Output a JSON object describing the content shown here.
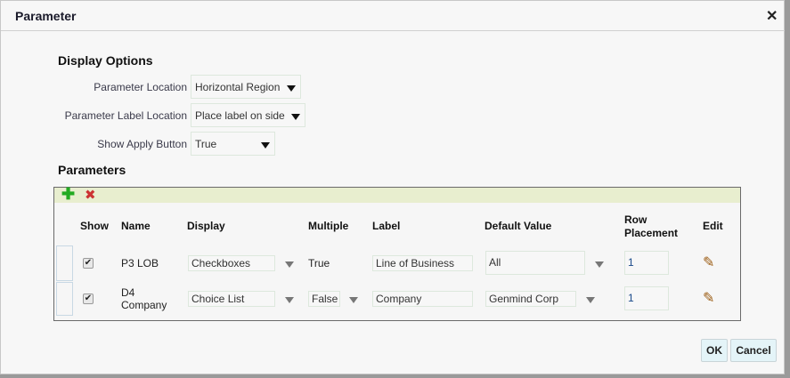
{
  "dialog": {
    "title": "Parameter",
    "close_icon": "close-icon"
  },
  "display_options": {
    "heading": "Display Options",
    "parameter_location": {
      "label": "Parameter Location",
      "value": "Horizontal Region"
    },
    "parameter_label_location": {
      "label": "Parameter Label Location",
      "value": "Place label on side"
    },
    "show_apply_button": {
      "label": "Show Apply Button",
      "value": "True"
    }
  },
  "parameters": {
    "heading": "Parameters",
    "toolbar": {
      "add_icon": "plus-icon",
      "delete_icon": "x-icon",
      "add_color": "#22aa22",
      "delete_color": "#cc3333"
    },
    "columns": {
      "show": "Show",
      "name": "Name",
      "display": "Display",
      "multiple": "Multiple",
      "label": "Label",
      "default_value": "Default Value",
      "row_placement_1": "Row",
      "row_placement_2": "Placement",
      "edit": "Edit"
    },
    "rows": [
      {
        "show": true,
        "name_1": "P3 LOB",
        "name_2": "",
        "display": "Checkboxes",
        "multiple": "True",
        "label": "Line of Business",
        "default_value": "All",
        "row_placement": "1"
      },
      {
        "show": true,
        "name_1": "D4",
        "name_2": "Company",
        "display": "Choice List",
        "multiple": "False",
        "label": "Company",
        "default_value": "Genmind Corp",
        "row_placement": "1"
      }
    ]
  },
  "buttons": {
    "ok": "OK",
    "cancel": "Cancel"
  }
}
